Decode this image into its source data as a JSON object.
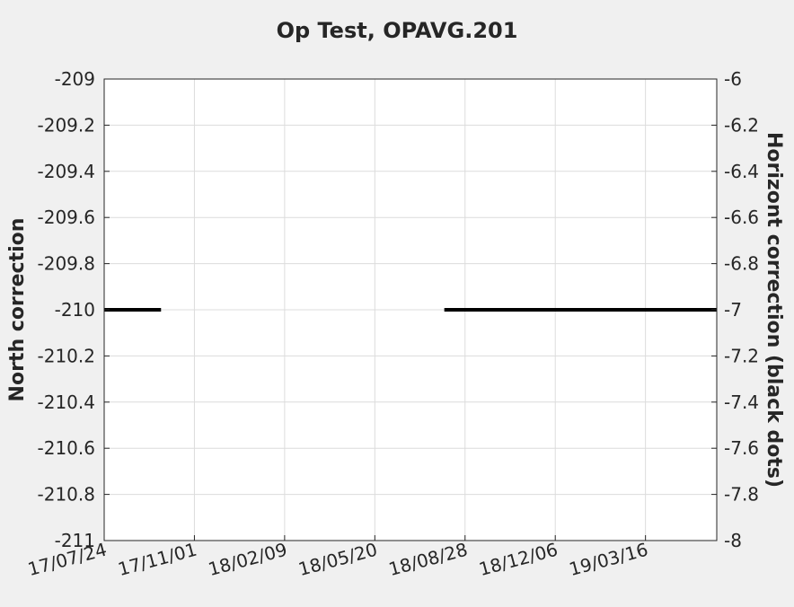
{
  "chart_data": {
    "type": "line",
    "title": "Op Test, OPAVG.201",
    "ylabel": "North correction",
    "y2label": "Horizont correction (black dots)",
    "ylim": [
      -211,
      -209
    ],
    "y2lim": [
      -8,
      -6
    ],
    "yticks": [
      "-209",
      "-209.2",
      "-209.4",
      "-209.6",
      "-209.8",
      "-210",
      "-210.2",
      "-210.4",
      "-210.6",
      "-210.8",
      "-211"
    ],
    "y2ticks": [
      "-6",
      "-6.2",
      "-6.4",
      "-6.6",
      "-6.8",
      "-7",
      "-7.2",
      "-7.4",
      "-7.6",
      "-7.8",
      "-8"
    ],
    "xlim": [
      "2017-07-24",
      "2019-06-03"
    ],
    "xticks": [
      {
        "date": "2017-07-24",
        "label": "17/07/24"
      },
      {
        "date": "2017-11-01",
        "label": "17/11/01"
      },
      {
        "date": "2018-02-09",
        "label": "18/02/09"
      },
      {
        "date": "2018-05-20",
        "label": "18/05/20"
      },
      {
        "date": "2018-08-28",
        "label": "18/08/28"
      },
      {
        "date": "2018-12-06",
        "label": "18/12/06"
      },
      {
        "date": "2019-03-16",
        "label": "19/03/16"
      }
    ],
    "grid": true,
    "series": [
      {
        "axis": "right",
        "color": "#000000",
        "y": -7,
        "segments": [
          [
            "2017-07-24",
            "2017-09-25"
          ],
          [
            "2018-08-05",
            "2019-06-03"
          ]
        ]
      }
    ]
  }
}
